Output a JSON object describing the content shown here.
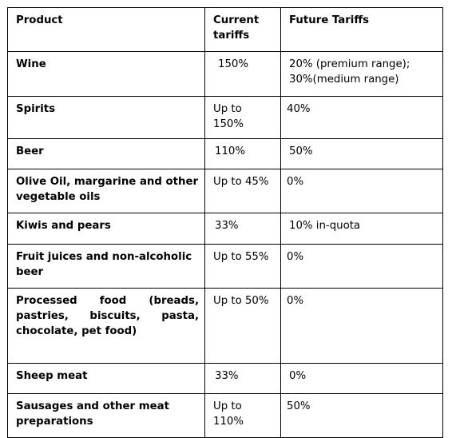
{
  "table": {
    "headers": [
      "Product",
      "Current tariffs",
      "Future Tariffs"
    ],
    "rows": [
      {
        "product": "Wine",
        "current": "150%",
        "future": [
          "20% (premium range);",
          "30%(medium range)"
        ]
      },
      {
        "product": "Spirits",
        "current": "Up to 150%",
        "future": [
          "40%"
        ]
      },
      {
        "product": "Beer",
        "current": "110%",
        "future": [
          "50%"
        ]
      },
      {
        "product": "Olive Oil, margarine and other vegetable oils",
        "current": "Up to 45%",
        "future": [
          "0%"
        ]
      },
      {
        "product": "Kiwis and pears",
        "current": "33%",
        "future": [
          "10% in-quota"
        ]
      },
      {
        "product": "Fruit juices and non-alcoholic beer",
        "current": "Up to 55%",
        "future": [
          "0%"
        ]
      },
      {
        "product": "Processed food (breads, pastries, biscuits, pasta, chocolate, pet food)",
        "current": "Up to 50%",
        "future": [
          "0%"
        ]
      },
      {
        "product": "Sheep meat",
        "current": "33%",
        "future": [
          "0%"
        ]
      },
      {
        "product": "Sausages and other meat preparations",
        "current": "Up to 110%",
        "future": [
          "50%"
        ]
      }
    ]
  }
}
